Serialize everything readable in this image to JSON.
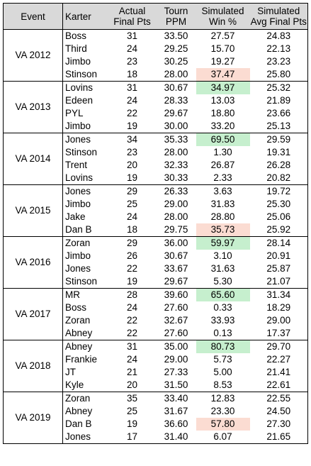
{
  "headers": {
    "event": "Event",
    "karter": "Karter",
    "actual_line1": "Actual",
    "actual_line2": "Final Pts",
    "tourn_line1": "Tourn",
    "tourn_line2": "PPM",
    "win_line1": "Simulated",
    "win_line2": "Win %",
    "avg_line1": "Simulated",
    "avg_line2": "Avg Final Pts"
  },
  "highlight_colors": {
    "green": "#c6efce",
    "red": "#fbdcd2"
  },
  "groups": [
    {
      "event": "VA 2012",
      "rows": [
        {
          "karter": "Boss",
          "actual": "31",
          "ppm": "33.50",
          "win": "27.57",
          "avg": "24.83"
        },
        {
          "karter": "Third",
          "actual": "24",
          "ppm": "29.25",
          "win": "15.70",
          "avg": "22.13"
        },
        {
          "karter": "Jimbo",
          "actual": "23",
          "ppm": "30.25",
          "win": "19.27",
          "avg": "23.23"
        },
        {
          "karter": "Stinson",
          "actual": "18",
          "ppm": "28.00",
          "win": "37.47",
          "avg": "25.80",
          "hl": "red"
        }
      ]
    },
    {
      "event": "VA 2013",
      "rows": [
        {
          "karter": "Lovins",
          "actual": "31",
          "ppm": "30.67",
          "win": "34.97",
          "avg": "25.32",
          "hl": "green"
        },
        {
          "karter": "Edeen",
          "actual": "24",
          "ppm": "28.33",
          "win": "13.03",
          "avg": "21.89"
        },
        {
          "karter": "PYL",
          "actual": "22",
          "ppm": "29.67",
          "win": "18.80",
          "avg": "23.66"
        },
        {
          "karter": "Jimbo",
          "actual": "19",
          "ppm": "30.00",
          "win": "33.20",
          "avg": "25.13"
        }
      ]
    },
    {
      "event": "VA 2014",
      "rows": [
        {
          "karter": "Jones",
          "actual": "34",
          "ppm": "35.33",
          "win": "69.50",
          "avg": "29.59",
          "hl": "green"
        },
        {
          "karter": "Stinson",
          "actual": "23",
          "ppm": "28.00",
          "win": "1.30",
          "avg": "19.31"
        },
        {
          "karter": "Trent",
          "actual": "20",
          "ppm": "32.33",
          "win": "26.87",
          "avg": "26.28"
        },
        {
          "karter": "Lovins",
          "actual": "19",
          "ppm": "30.33",
          "win": "2.33",
          "avg": "20.82"
        }
      ]
    },
    {
      "event": "VA 2015",
      "rows": [
        {
          "karter": "Jones",
          "actual": "29",
          "ppm": "26.33",
          "win": "3.63",
          "avg": "19.72"
        },
        {
          "karter": "Jimbo",
          "actual": "25",
          "ppm": "29.00",
          "win": "31.83",
          "avg": "25.30"
        },
        {
          "karter": "Jake",
          "actual": "24",
          "ppm": "28.00",
          "win": "28.80",
          "avg": "25.06"
        },
        {
          "karter": "Dan B",
          "actual": "18",
          "ppm": "29.75",
          "win": "35.73",
          "avg": "25.92",
          "hl": "red"
        }
      ]
    },
    {
      "event": "VA 2016",
      "rows": [
        {
          "karter": "Zoran",
          "actual": "29",
          "ppm": "36.00",
          "win": "59.97",
          "avg": "28.14",
          "hl": "green"
        },
        {
          "karter": "Jimbo",
          "actual": "26",
          "ppm": "30.67",
          "win": "3.10",
          "avg": "20.91"
        },
        {
          "karter": "Jones",
          "actual": "22",
          "ppm": "33.67",
          "win": "31.63",
          "avg": "25.87"
        },
        {
          "karter": "Stinson",
          "actual": "19",
          "ppm": "29.67",
          "win": "5.30",
          "avg": "21.07"
        }
      ]
    },
    {
      "event": "VA 2017",
      "rows": [
        {
          "karter": "MR",
          "actual": "28",
          "ppm": "39.60",
          "win": "65.60",
          "avg": "31.34",
          "hl": "green"
        },
        {
          "karter": "Boss",
          "actual": "24",
          "ppm": "27.60",
          "win": "0.33",
          "avg": "18.29"
        },
        {
          "karter": "Zoran",
          "actual": "22",
          "ppm": "32.67",
          "win": "33.93",
          "avg": "29.00"
        },
        {
          "karter": "Abney",
          "actual": "22",
          "ppm": "27.60",
          "win": "0.13",
          "avg": "17.37"
        }
      ]
    },
    {
      "event": "VA 2018",
      "rows": [
        {
          "karter": "Abney",
          "actual": "31",
          "ppm": "35.00",
          "win": "80.73",
          "avg": "29.70",
          "hl": "green"
        },
        {
          "karter": "Frankie",
          "actual": "24",
          "ppm": "29.00",
          "win": "5.73",
          "avg": "22.27"
        },
        {
          "karter": "JT",
          "actual": "21",
          "ppm": "27.33",
          "win": "5.00",
          "avg": "21.41"
        },
        {
          "karter": "Kyle",
          "actual": "20",
          "ppm": "31.50",
          "win": "8.53",
          "avg": "22.61"
        }
      ]
    },
    {
      "event": "VA 2019",
      "rows": [
        {
          "karter": "Zoran",
          "actual": "35",
          "ppm": "33.40",
          "win": "12.83",
          "avg": "22.55"
        },
        {
          "karter": "Abney",
          "actual": "25",
          "ppm": "31.67",
          "win": "23.30",
          "avg": "24.50"
        },
        {
          "karter": "Dan B",
          "actual": "19",
          "ppm": "36.60",
          "win": "57.80",
          "avg": "27.30",
          "hl": "red"
        },
        {
          "karter": "Jones",
          "actual": "17",
          "ppm": "31.40",
          "win": "6.07",
          "avg": "21.65"
        }
      ]
    }
  ]
}
